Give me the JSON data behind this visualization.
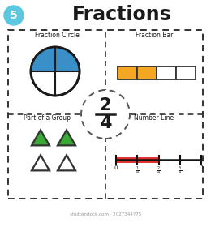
{
  "title": "Fractions",
  "badge_num": "5",
  "badge_color": "#5bc8e0",
  "fraction_num": "2",
  "fraction_den": "4",
  "section_labels": [
    "Fraction Circle",
    "Fraction Bar",
    "Part of a Group",
    "Number Line"
  ],
  "circle_fill_color": "#3a8fc7",
  "circle_edge_color": "#1a1a1a",
  "bar_filled": 2,
  "bar_total": 4,
  "bar_fill_color": "#f5a623",
  "bar_edge_color": "#333333",
  "triangle_fill_color": "#3aaa35",
  "triangle_edge_color": "#333333",
  "nl_red_color": "#e03030",
  "nl_line_color": "#111111",
  "outer_box_color": "#333333",
  "bg_color": "#ffffff",
  "watermark": "shutterstock.com · 2027344775"
}
